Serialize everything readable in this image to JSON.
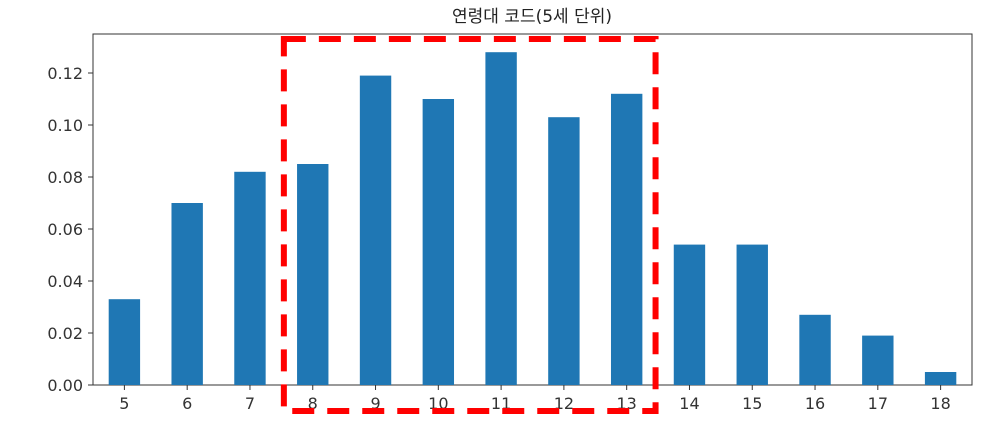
{
  "chart_data": {
    "type": "bar",
    "title": "연령대 코드(5세 단위)",
    "xlabel": "",
    "ylabel": "",
    "categories": [
      "5",
      "6",
      "7",
      "8",
      "9",
      "10",
      "11",
      "12",
      "13",
      "14",
      "15",
      "16",
      "17",
      "18"
    ],
    "values": [
      0.033,
      0.07,
      0.082,
      0.085,
      0.119,
      0.11,
      0.128,
      0.103,
      0.112,
      0.054,
      0.054,
      0.027,
      0.019,
      0.005
    ],
    "ylim": [
      0,
      0.135
    ],
    "yticks": [
      0.0,
      0.02,
      0.04,
      0.06,
      0.08,
      0.1,
      0.12
    ],
    "ytick_labels": [
      "0.00",
      "0.02",
      "0.04",
      "0.06",
      "0.08",
      "0.10",
      "0.12"
    ],
    "bar_color": "#1f77b4",
    "grid": false,
    "legend": "none",
    "highlight": {
      "style": "red dashed box",
      "color": "#ff0000",
      "categories": [
        "8",
        "9",
        "10",
        "11",
        "12",
        "13"
      ]
    }
  }
}
